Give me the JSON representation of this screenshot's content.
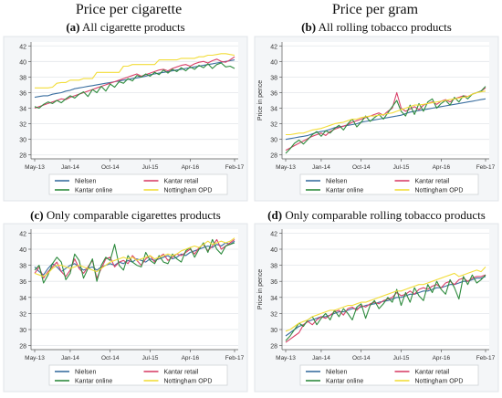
{
  "header": {
    "left_title": "Price per cigarette",
    "right_title": "Price per gram"
  },
  "legend_labels": [
    "Nielsen",
    "Kantar retail",
    "Kantar online",
    "Nottingham OPD"
  ],
  "colors": {
    "Nielsen": "#3b6fa0",
    "Kantar retail": "#d9436b",
    "Kantar online": "#2e8b3e",
    "Nottingham OPD": "#f2dd3a"
  },
  "chart_data": [
    {
      "type": "line",
      "letter": "(a)",
      "title": "All cigarette products",
      "ylabel": "",
      "xticks": [
        "May-13",
        "Jan-14",
        "Oct-14",
        "Jul-15",
        "Apr-16",
        "Feb-17"
      ],
      "tick_positions": [
        0,
        8,
        17,
        26,
        35,
        45
      ],
      "yticks": [
        28,
        30,
        32,
        34,
        36,
        38,
        40,
        42
      ],
      "ylim": [
        27.5,
        42.5
      ],
      "series": [
        {
          "name": "Nielsen",
          "values": [
            35.4,
            35.5,
            35.6,
            35.6,
            35.8,
            35.9,
            36.0,
            36.2,
            36.3,
            36.5,
            36.6,
            36.7,
            36.8,
            36.9,
            37.0,
            37.1,
            37.2,
            37.3,
            37.4,
            37.5,
            37.6,
            37.7,
            37.8,
            37.9,
            38.0,
            38.1,
            38.3,
            38.4,
            38.5,
            38.6,
            38.7,
            38.8,
            38.9,
            39.0,
            39.1,
            39.2,
            39.3,
            39.4,
            39.5,
            39.6,
            39.7,
            39.8,
            39.9,
            40.0,
            40.1,
            40.2
          ]
        },
        {
          "name": "Kantar retail",
          "values": [
            34.0,
            34.2,
            34.4,
            34.6,
            34.8,
            35.0,
            35.2,
            35.1,
            35.4,
            35.6,
            35.8,
            36.0,
            36.2,
            36.4,
            36.6,
            36.8,
            37.0,
            37.2,
            37.4,
            37.6,
            37.8,
            38.0,
            38.2,
            38.4,
            38.1,
            38.3,
            38.5,
            38.7,
            38.9,
            39.0,
            38.8,
            39.1,
            39.3,
            39.5,
            39.6,
            39.4,
            39.7,
            39.9,
            40.0,
            39.8,
            40.1,
            40.3,
            40.0,
            39.9,
            40.2,
            40.6
          ]
        },
        {
          "name": "Kantar online",
          "values": [
            34.2,
            34.0,
            34.5,
            34.8,
            34.6,
            35.0,
            34.7,
            35.2,
            35.6,
            35.3,
            35.8,
            36.1,
            35.5,
            36.4,
            36.0,
            36.8,
            36.2,
            37.1,
            36.7,
            37.4,
            37.2,
            37.8,
            37.5,
            38.2,
            38.0,
            38.4,
            38.1,
            38.6,
            38.3,
            38.9,
            38.5,
            39.0,
            38.7,
            39.2,
            38.8,
            39.3,
            39.0,
            39.5,
            39.2,
            39.7,
            39.1,
            39.6,
            39.8,
            39.3,
            39.4,
            39.1
          ]
        },
        {
          "name": "Nottingham OPD",
          "values": [
            36.6,
            36.6,
            36.6,
            36.6,
            36.7,
            37.2,
            37.3,
            37.3,
            37.6,
            37.6,
            37.6,
            37.8,
            37.8,
            37.8,
            38.6,
            38.6,
            38.6,
            38.6,
            38.6,
            38.6,
            39.4,
            39.4,
            39.6,
            39.6,
            39.6,
            39.6,
            39.6,
            39.6,
            40.2,
            40.2,
            40.2,
            40.2,
            40.2,
            40.4,
            40.4,
            40.4,
            40.4,
            40.6,
            40.6,
            40.8,
            40.8,
            40.9,
            41.0,
            41.0,
            40.9,
            40.8
          ]
        }
      ]
    },
    {
      "type": "line",
      "letter": "(b)",
      "title": "All rolling tobacco products",
      "ylabel": "Price in pence",
      "xticks": [
        "May-13",
        "Jan-14",
        "Oct-14",
        "Jul-15",
        "Apr-16",
        "Feb-17"
      ],
      "tick_positions": [
        0,
        8,
        17,
        26,
        35,
        45
      ],
      "yticks": [
        28,
        30,
        32,
        34,
        36,
        38,
        40,
        42
      ],
      "ylim": [
        27.5,
        42.5
      ],
      "series": [
        {
          "name": "Nielsen",
          "values": [
            30.0,
            30.1,
            30.2,
            30.3,
            30.4,
            30.5,
            30.7,
            30.9,
            31.0,
            31.1,
            31.3,
            31.5,
            31.6,
            31.7,
            31.8,
            31.9,
            32.0,
            32.2,
            32.3,
            32.4,
            32.5,
            32.6,
            32.7,
            32.8,
            32.9,
            33.0,
            33.1,
            33.3,
            33.5,
            33.6,
            33.7,
            33.8,
            33.9,
            34.0,
            34.1,
            34.2,
            34.3,
            34.4,
            34.5,
            34.6,
            34.7,
            34.8,
            34.9,
            35.0,
            35.1,
            35.2
          ]
        },
        {
          "name": "Kantar retail",
          "values": [
            28.6,
            28.9,
            29.2,
            29.5,
            29.8,
            30.1,
            30.4,
            30.6,
            30.8,
            30.5,
            31.0,
            31.3,
            31.5,
            31.7,
            31.9,
            32.2,
            32.4,
            32.6,
            32.8,
            33.0,
            33.2,
            33.4,
            33.1,
            33.6,
            34.0,
            36.0,
            34.0,
            33.6,
            33.9,
            34.2,
            33.8,
            34.4,
            34.6,
            34.8,
            34.5,
            34.9,
            35.1,
            34.8,
            35.2,
            35.4,
            35.6,
            35.5,
            35.8,
            36.0,
            36.2,
            36.6
          ]
        },
        {
          "name": "Kantar online",
          "values": [
            28.2,
            28.8,
            29.5,
            29.9,
            29.4,
            30.0,
            30.6,
            31.0,
            30.4,
            31.1,
            30.8,
            31.4,
            31.8,
            31.2,
            32.0,
            32.6,
            31.6,
            32.2,
            33.0,
            32.3,
            32.8,
            33.2,
            32.6,
            33.4,
            34.2,
            35.0,
            33.6,
            33.0,
            34.4,
            33.2,
            34.6,
            33.6,
            34.8,
            35.2,
            34.0,
            34.6,
            35.0,
            34.4,
            35.4,
            34.8,
            35.6,
            35.2,
            35.8,
            36.0,
            36.2,
            36.8
          ]
        },
        {
          "name": "Nottingham OPD",
          "values": [
            30.6,
            30.6,
            30.7,
            30.8,
            30.8,
            31.0,
            31.2,
            31.3,
            31.4,
            31.6,
            31.8,
            32.0,
            32.1,
            32.2,
            32.4,
            32.6,
            32.6,
            32.8,
            32.9,
            33.0,
            33.0,
            33.1,
            33.2,
            33.3,
            33.4,
            33.6,
            33.8,
            34.0,
            34.2,
            34.4,
            34.4,
            34.5,
            34.6,
            34.7,
            34.8,
            34.9,
            35.0,
            35.1,
            35.2,
            35.3,
            35.4,
            35.5,
            35.8,
            36.0,
            36.1,
            36.2
          ]
        }
      ]
    },
    {
      "type": "line",
      "letter": "(c)",
      "title": "Only comparable cigarettes products",
      "ylabel": "",
      "xticks": [
        "May-13",
        "Jan-14",
        "Oct-14",
        "Jul-15",
        "Apr-16",
        "Feb-17"
      ],
      "tick_positions": [
        0,
        8,
        17,
        26,
        35,
        45
      ],
      "yticks": [
        28,
        30,
        32,
        34,
        36,
        38,
        40,
        42
      ],
      "ylim": [
        27.5,
        42.5
      ],
      "series": [
        {
          "name": "Nielsen",
          "values": [
            37.8,
            37.2,
            36.8,
            37.6,
            38.2,
            37.8,
            37.2,
            37.6,
            38.0,
            38.2,
            37.8,
            37.4,
            37.6,
            37.8,
            37.4,
            37.8,
            38.0,
            38.2,
            38.0,
            38.4,
            38.2,
            38.6,
            38.4,
            38.8,
            38.6,
            38.4,
            38.8,
            38.6,
            38.8,
            39.0,
            39.2,
            38.8,
            39.0,
            39.4,
            39.2,
            39.6,
            39.8,
            40.0,
            40.2,
            40.4,
            40.2,
            40.6,
            40.4,
            40.8,
            40.6,
            41.0
          ]
        },
        {
          "name": "Kantar retail",
          "values": [
            37.0,
            37.8,
            36.4,
            37.2,
            37.8,
            38.4,
            37.2,
            36.6,
            37.4,
            38.8,
            37.6,
            37.0,
            37.8,
            38.6,
            36.4,
            37.6,
            38.8,
            39.0,
            37.8,
            38.4,
            38.6,
            38.2,
            39.2,
            38.6,
            38.0,
            38.8,
            39.2,
            38.4,
            39.0,
            39.4,
            38.6,
            39.0,
            39.4,
            39.2,
            39.6,
            40.0,
            39.4,
            40.2,
            40.6,
            39.8,
            40.4,
            41.2,
            40.0,
            40.4,
            40.8,
            41.2
          ]
        },
        {
          "name": "Kantar online",
          "values": [
            37.4,
            38.0,
            35.8,
            36.8,
            38.2,
            39.0,
            38.4,
            36.2,
            37.0,
            39.4,
            38.6,
            36.4,
            37.6,
            38.8,
            36.0,
            38.0,
            39.0,
            38.6,
            40.6,
            38.0,
            37.4,
            39.2,
            38.4,
            38.0,
            37.8,
            39.6,
            38.6,
            38.2,
            39.2,
            38.4,
            38.2,
            39.4,
            38.8,
            38.4,
            39.8,
            40.2,
            39.0,
            40.0,
            40.8,
            39.6,
            41.2,
            40.0,
            39.4,
            40.4,
            40.6,
            40.8
          ]
        },
        {
          "name": "Nottingham OPD",
          "values": [
            37.0,
            36.8,
            36.6,
            37.0,
            37.6,
            38.0,
            38.0,
            37.8,
            37.6,
            37.8,
            38.0,
            37.8,
            37.6,
            37.4,
            37.2,
            37.6,
            38.0,
            38.4,
            38.6,
            38.8,
            39.0,
            38.8,
            39.0,
            38.6,
            38.8,
            39.0,
            39.2,
            38.8,
            39.0,
            39.2,
            39.4,
            39.2,
            39.4,
            39.8,
            40.0,
            40.2,
            40.4,
            40.2,
            40.6,
            41.0,
            40.6,
            40.8,
            41.0,
            40.8,
            41.0,
            41.4
          ]
        }
      ]
    },
    {
      "type": "line",
      "letter": "(d)",
      "title": "Only comparable rolling tobacco products",
      "ylabel": "Price in pence",
      "xticks": [
        "May-13",
        "Jan-14",
        "Oct-14",
        "Jul-15",
        "Apr-16",
        "Feb-17"
      ],
      "tick_positions": [
        0,
        8,
        17,
        26,
        35,
        45
      ],
      "yticks": [
        28,
        30,
        32,
        34,
        36,
        38,
        40,
        42
      ],
      "ylim": [
        27.5,
        42.5
      ],
      "series": [
        {
          "name": "Nielsen",
          "values": [
            29.2,
            29.6,
            30.0,
            30.4,
            30.6,
            31.0,
            31.2,
            31.4,
            31.6,
            31.6,
            31.8,
            32.0,
            32.2,
            32.2,
            32.4,
            32.6,
            32.6,
            32.8,
            33.0,
            33.1,
            33.2,
            33.4,
            33.5,
            33.6,
            33.8,
            34.0,
            34.0,
            34.2,
            34.4,
            34.4,
            34.6,
            34.8,
            34.8,
            35.0,
            35.2,
            35.2,
            35.4,
            35.6,
            35.6,
            35.8,
            36.0,
            36.0,
            36.2,
            36.4,
            36.4,
            36.6
          ]
        },
        {
          "name": "Kantar retail",
          "values": [
            28.4,
            28.8,
            29.2,
            29.6,
            30.6,
            31.0,
            30.6,
            31.2,
            31.6,
            31.4,
            31.8,
            32.2,
            32.4,
            31.8,
            32.6,
            32.8,
            32.4,
            33.0,
            32.8,
            33.2,
            33.4,
            33.2,
            33.6,
            33.8,
            34.0,
            34.6,
            34.2,
            34.4,
            34.8,
            34.4,
            35.0,
            35.2,
            35.0,
            35.4,
            35.6,
            35.2,
            35.8,
            36.0,
            35.6,
            36.2,
            36.4,
            36.0,
            36.4,
            36.6,
            36.6,
            36.8
          ]
        },
        {
          "name": "Kantar online",
          "values": [
            28.6,
            29.2,
            30.0,
            30.8,
            30.4,
            31.2,
            31.6,
            30.6,
            31.4,
            32.0,
            31.2,
            32.4,
            31.6,
            32.6,
            32.0,
            31.2,
            32.8,
            33.2,
            31.4,
            33.0,
            33.6,
            32.6,
            33.2,
            34.0,
            33.4,
            35.0,
            33.0,
            34.6,
            33.4,
            35.2,
            34.2,
            33.6,
            35.6,
            34.6,
            36.0,
            35.0,
            34.4,
            36.2,
            35.2,
            33.8,
            36.6,
            35.6,
            36.8,
            35.8,
            36.2,
            36.8
          ]
        },
        {
          "name": "Nottingham OPD",
          "values": [
            29.8,
            30.0,
            30.4,
            30.8,
            31.0,
            31.2,
            31.6,
            31.8,
            32.0,
            32.2,
            32.4,
            32.4,
            32.6,
            32.8,
            33.0,
            33.0,
            33.2,
            33.4,
            33.4,
            33.6,
            33.8,
            34.0,
            34.2,
            34.4,
            34.6,
            34.8,
            34.8,
            35.0,
            35.2,
            35.4,
            35.6,
            35.6,
            35.8,
            36.0,
            36.2,
            36.4,
            36.6,
            36.8,
            37.0,
            36.6,
            36.8,
            37.0,
            37.2,
            37.4,
            37.2,
            37.8
          ]
        }
      ]
    }
  ]
}
